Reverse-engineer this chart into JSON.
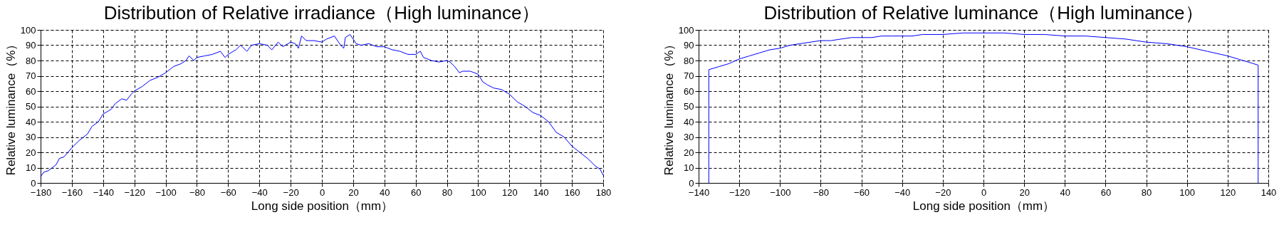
{
  "chart_data": [
    {
      "type": "line",
      "title": "Distribution of Relative irradiance（High luminance）",
      "xlabel": "Long side position（mm）",
      "ylabel": "Relative luminance（%）",
      "xlim": [
        -180,
        180
      ],
      "ylim": [
        0,
        100
      ],
      "xticks": [
        -180,
        -160,
        -140,
        -120,
        -100,
        -80,
        -60,
        -40,
        -20,
        0,
        20,
        40,
        60,
        80,
        100,
        120,
        140,
        160,
        180
      ],
      "yticks": [
        0,
        10,
        20,
        30,
        40,
        50,
        60,
        70,
        80,
        90,
        100
      ],
      "grid": true,
      "line_style": "dashed",
      "x": [
        -180,
        -178,
        -175,
        -170,
        -168,
        -165,
        -160,
        -155,
        -150,
        -147,
        -143,
        -140,
        -135,
        -132,
        -128,
        -125,
        -122,
        -120,
        -115,
        -110,
        -105,
        -100,
        -95,
        -90,
        -87,
        -85,
        -82,
        -80,
        -75,
        -70,
        -65,
        -62,
        -60,
        -55,
        -52,
        -48,
        -45,
        -40,
        -35,
        -32,
        -28,
        -25,
        -20,
        -17,
        -15,
        -13,
        -10,
        -5,
        0,
        3,
        8,
        12,
        14,
        15,
        18,
        22,
        25,
        30,
        35,
        40,
        45,
        50,
        55,
        60,
        63,
        65,
        70,
        75,
        80,
        82,
        85,
        88,
        90,
        95,
        100,
        103,
        106,
        110,
        115,
        120,
        125,
        130,
        135,
        140,
        145,
        150,
        155,
        160,
        165,
        170,
        175,
        178,
        180
      ],
      "series": [
        {
          "color": "#0000ff",
          "line_style": "solid",
          "values": [
            4,
            7,
            8,
            12,
            16,
            17,
            23,
            28,
            32,
            37,
            40,
            45,
            48,
            52,
            55,
            54,
            58,
            60,
            63,
            67,
            69,
            72,
            76,
            78,
            80,
            83,
            80,
            82,
            83,
            84,
            86,
            82,
            84,
            87,
            90,
            86,
            90,
            91,
            90,
            87,
            92,
            89,
            92,
            91,
            88,
            96,
            93,
            93,
            92,
            94,
            96,
            90,
            88,
            95,
            97,
            91,
            90,
            91,
            89,
            89,
            87,
            86,
            84,
            84,
            86,
            82,
            80,
            79,
            80,
            79,
            76,
            72,
            73,
            73,
            71,
            66,
            64,
            62,
            61,
            58,
            53,
            50,
            46,
            44,
            40,
            33,
            30,
            24,
            20,
            16,
            11,
            9,
            5
          ]
        }
      ]
    },
    {
      "type": "line",
      "title": "Distribution of Relative luminance（High luminance）",
      "xlabel": "Long side position（mm）",
      "ylabel": "Relative luminance（%）",
      "xlim": [
        -140,
        140
      ],
      "ylim": [
        0,
        100
      ],
      "xticks": [
        -140,
        -120,
        -100,
        -80,
        -60,
        -40,
        -20,
        0,
        20,
        40,
        60,
        80,
        100,
        120,
        140
      ],
      "yticks": [
        0,
        10,
        20,
        30,
        40,
        50,
        60,
        70,
        80,
        90,
        100
      ],
      "grid": true,
      "line_style": "dashed",
      "x": [
        -135,
        -135,
        -130,
        -125,
        -120,
        -115,
        -110,
        -105,
        -100,
        -95,
        -90,
        -85,
        -80,
        -75,
        -70,
        -65,
        -60,
        -55,
        -50,
        -45,
        -40,
        -35,
        -30,
        -20,
        -10,
        0,
        10,
        20,
        30,
        40,
        50,
        60,
        70,
        80,
        90,
        100,
        110,
        120,
        125,
        130,
        135,
        135
      ],
      "series": [
        {
          "color": "#0000ff",
          "line_style": "solid",
          "values": [
            0,
            74,
            76,
            78,
            81,
            83,
            85,
            87,
            88,
            90,
            91,
            92,
            93,
            93,
            94,
            95,
            95,
            95,
            96,
            96,
            96,
            96,
            97,
            97,
            98,
            98,
            98,
            97,
            97,
            96,
            96,
            95,
            94,
            92,
            91,
            89,
            86,
            83,
            81,
            79,
            77,
            0
          ]
        }
      ]
    }
  ]
}
